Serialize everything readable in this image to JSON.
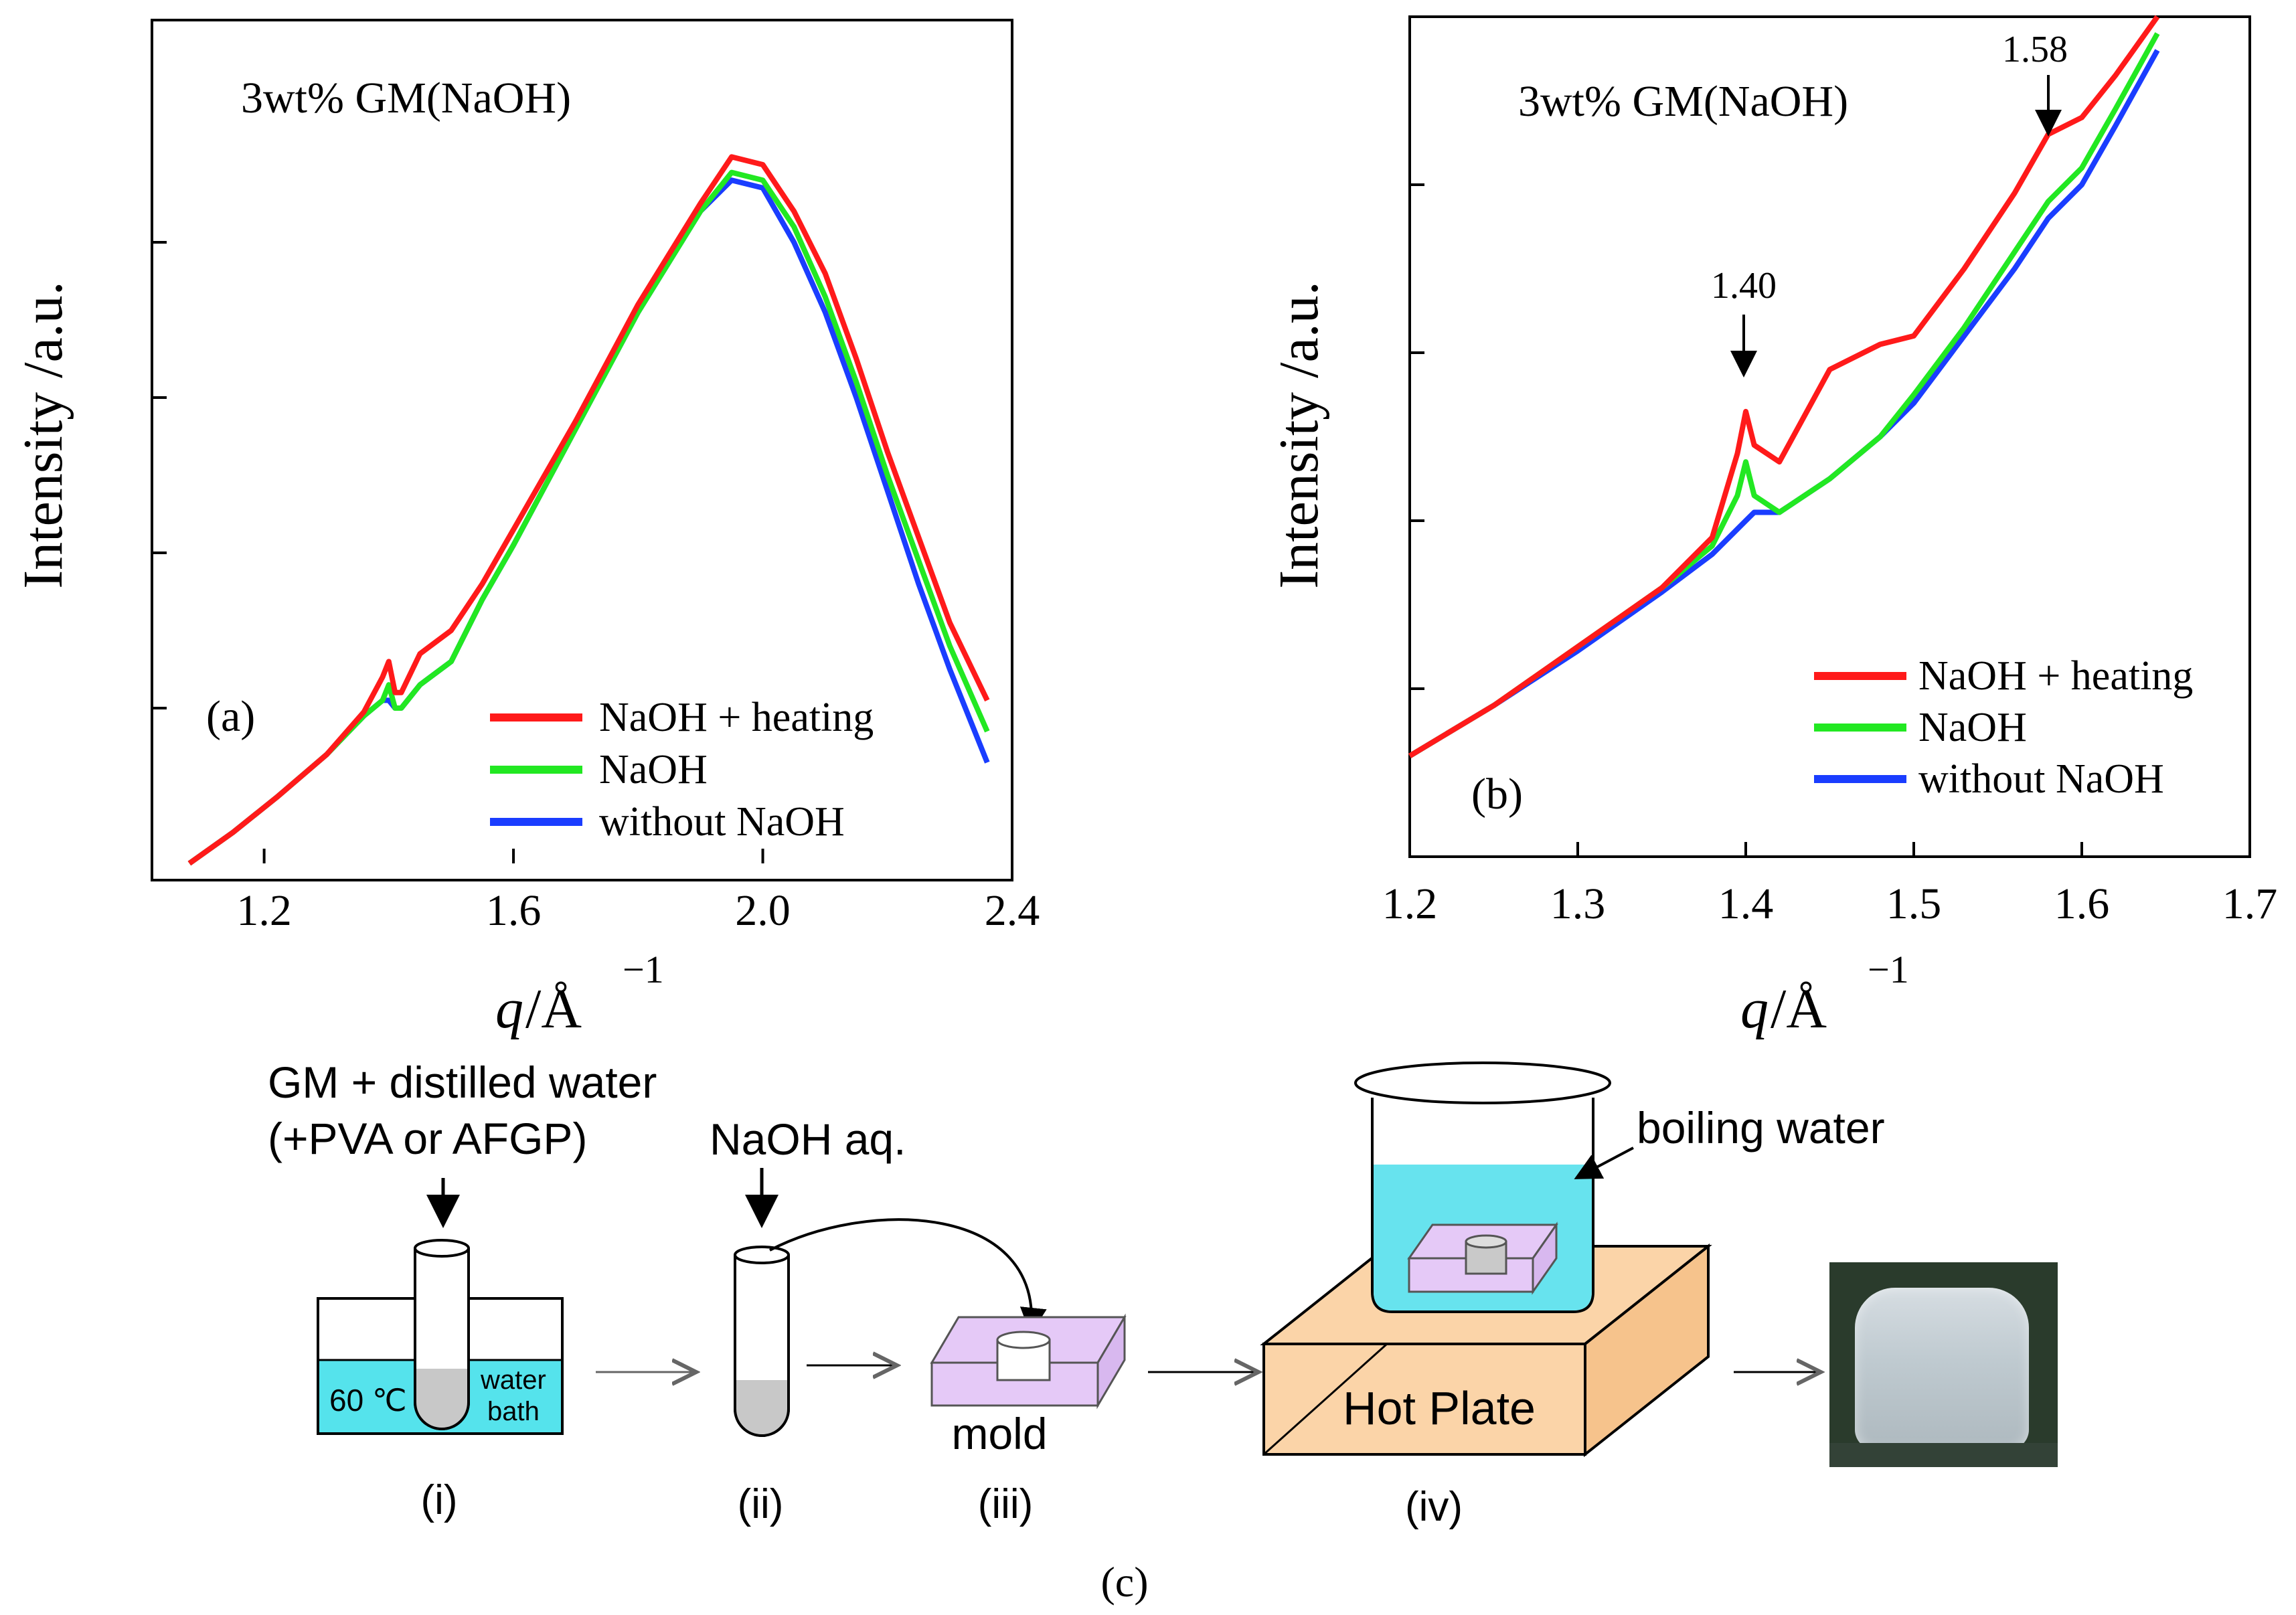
{
  "panel_a": {
    "label": "(a)",
    "sample_title": "3wt% GM(NaOH)",
    "ylabel": "Intensity /a.u.",
    "xlabel_q": "q",
    "xlabel_unit": " /Å",
    "xlabel_exp": "−1",
    "legend": [
      "NaOH + heating",
      "NaOH",
      "without NaOH"
    ]
  },
  "panel_b": {
    "label": "(b)",
    "sample_title": "3wt% GM(NaOH)",
    "ylabel": "Intensity /a.u.",
    "xlabel_q": "q",
    "xlabel_unit": " /Å",
    "xlabel_exp": "−1",
    "peak_labels": [
      "1.40",
      "1.58"
    ],
    "legend": [
      "NaOH + heating",
      "NaOH",
      "without NaOH"
    ]
  },
  "panel_c": {
    "caption": "(c)",
    "step_i_top": "GM + distilled water",
    "step_i_sub": "(+PVA or AFGP)",
    "bath_temp": "60 ℃",
    "bath_label_1": "water",
    "bath_label_2": "bath",
    "step_ii_top": "NaOH aq.",
    "mold_label": "mold",
    "boiling_label": "boiling water",
    "hot_plate_label": "Hot Plate",
    "steps": [
      "(i)",
      "(ii)",
      "(iii)",
      "(iv)"
    ]
  },
  "chart_data": [
    {
      "type": "line",
      "title": "3wt% GM(NaOH)",
      "xlabel": "q /Å−1",
      "ylabel": "Intensity /a.u.",
      "xlim": [
        1.02,
        2.4
      ],
      "ylim": [
        0,
        100
      ],
      "xticks": [
        1.2,
        1.6,
        2.0,
        2.4
      ],
      "colors": [
        "#ff1a1a",
        "#22e822",
        "#1a3dff"
      ],
      "series": [
        {
          "name": "NaOH + heating",
          "x": [
            1.08,
            1.15,
            1.22,
            1.3,
            1.36,
            1.39,
            1.4,
            1.41,
            1.42,
            1.45,
            1.5,
            1.55,
            1.6,
            1.7,
            1.8,
            1.9,
            1.95,
            2.0,
            2.05,
            2.1,
            2.15,
            2.2,
            2.25,
            2.3,
            2.36
          ],
          "y": [
            0,
            4,
            8.5,
            14,
            19.5,
            24,
            26,
            22,
            22,
            27,
            30,
            36,
            43,
            57,
            72,
            85,
            91,
            90,
            84,
            76,
            65,
            53,
            42,
            31,
            21
          ]
        },
        {
          "name": "NaOH",
          "x": [
            1.08,
            1.15,
            1.22,
            1.3,
            1.36,
            1.39,
            1.4,
            1.41,
            1.42,
            1.45,
            1.5,
            1.55,
            1.6,
            1.7,
            1.8,
            1.9,
            1.95,
            2.0,
            2.05,
            2.1,
            2.15,
            2.2,
            2.25,
            2.3,
            2.36
          ],
          "y": [
            0,
            4,
            8.5,
            14,
            19,
            21,
            23,
            20,
            20,
            23,
            26,
            34,
            41,
            56,
            71,
            84,
            89,
            88,
            82,
            73,
            62,
            50,
            39,
            28,
            17
          ]
        },
        {
          "name": "without NaOH",
          "x": [
            1.08,
            1.15,
            1.22,
            1.3,
            1.36,
            1.39,
            1.4,
            1.41,
            1.42,
            1.45,
            1.5,
            1.55,
            1.6,
            1.7,
            1.8,
            1.9,
            1.95,
            2.0,
            2.05,
            2.1,
            2.15,
            2.2,
            2.25,
            2.3,
            2.36
          ],
          "y": [
            0,
            4,
            8.5,
            14,
            19,
            21,
            21,
            20,
            20,
            23,
            26,
            34,
            41,
            56,
            71,
            84,
            88,
            87,
            80,
            71,
            60,
            48,
            36,
            25,
            13
          ]
        }
      ]
    },
    {
      "type": "line",
      "title": "3wt% GM(NaOH)",
      "xlabel": "q /Å−1",
      "ylabel": "Intensity /a.u.",
      "xlim": [
        1.2,
        1.7
      ],
      "ylim": [
        0,
        100
      ],
      "xticks": [
        1.2,
        1.3,
        1.4,
        1.5,
        1.6,
        1.7
      ],
      "annotations": [
        {
          "text": "1.40",
          "x": 1.4
        },
        {
          "text": "1.58",
          "x": 1.58
        }
      ],
      "colors": [
        "#ff1a1a",
        "#22e822",
        "#1a3dff"
      ],
      "series": [
        {
          "name": "NaOH + heating",
          "x": [
            1.2,
            1.25,
            1.3,
            1.35,
            1.38,
            1.395,
            1.4,
            1.405,
            1.42,
            1.45,
            1.48,
            1.5,
            1.53,
            1.56,
            1.58,
            1.6,
            1.62,
            1.645
          ],
          "y": [
            12,
            18,
            25,
            32,
            38,
            48,
            53,
            49,
            47,
            58,
            61,
            62,
            70,
            79,
            86,
            88,
            93,
            100
          ]
        },
        {
          "name": "NaOH",
          "x": [
            1.2,
            1.25,
            1.3,
            1.35,
            1.38,
            1.395,
            1.4,
            1.405,
            1.42,
            1.45,
            1.48,
            1.5,
            1.53,
            1.56,
            1.58,
            1.6,
            1.62,
            1.645
          ],
          "y": [
            12,
            18,
            25,
            32,
            37,
            43,
            47,
            43,
            41,
            45,
            50,
            55,
            63,
            72,
            78,
            82,
            89,
            98
          ]
        },
        {
          "name": "without NaOH",
          "x": [
            1.2,
            1.25,
            1.3,
            1.35,
            1.38,
            1.395,
            1.4,
            1.405,
            1.42,
            1.45,
            1.48,
            1.5,
            1.53,
            1.56,
            1.58,
            1.6,
            1.62,
            1.645
          ],
          "y": [
            12,
            18,
            24.5,
            31.5,
            36,
            39,
            40,
            41,
            41,
            45,
            50,
            54,
            62,
            70,
            76,
            80,
            87,
            96
          ]
        }
      ]
    }
  ]
}
